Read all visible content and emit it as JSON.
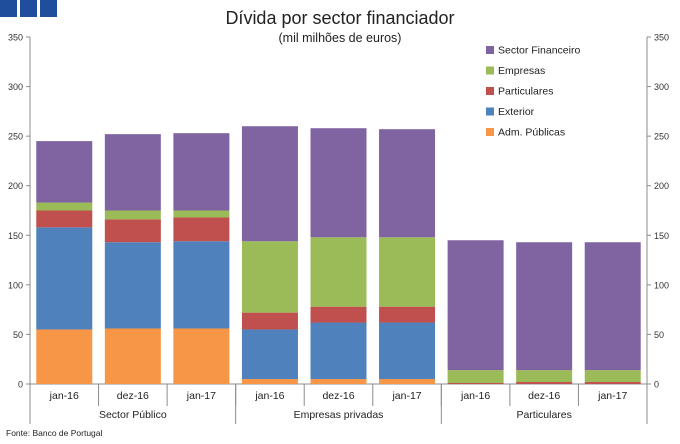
{
  "logo": {
    "icon": "brand-squares-icon",
    "color": "#1f4e9c"
  },
  "source": "Fonte: Banco de Portugal",
  "chart_data": {
    "type": "bar",
    "stacked": true,
    "title": "Dívida por sector financiador",
    "subtitle": "(mil milhões de euros)",
    "ylim": [
      0,
      350
    ],
    "yticks": [
      0,
      50,
      100,
      150,
      200,
      250,
      300,
      350
    ],
    "ytick_labels": [
      "0",
      "50",
      "100",
      "150",
      "200",
      "250",
      "300",
      "350"
    ],
    "secondary_axis": true,
    "grid": false,
    "legend_position": "top-right",
    "categories": [
      "jan-16",
      "dez-16",
      "jan-17",
      "jan-16",
      "dez-16",
      "jan-17",
      "jan-16",
      "dez-16",
      "jan-17"
    ],
    "groups": [
      {
        "label": "Sector Público",
        "span": 3
      },
      {
        "label": "Empresas privadas",
        "span": 3
      },
      {
        "label": "Particulares",
        "span": 3
      }
    ],
    "legend_order": [
      "Sector Financeiro",
      "Empresas",
      "Particulares",
      "Exterior",
      "Adm. Públicas"
    ],
    "series": [
      {
        "name": "Adm. Públicas",
        "color": "#f79646",
        "values": [
          55,
          56,
          56,
          5,
          5,
          5,
          0,
          0,
          0
        ]
      },
      {
        "name": "Exterior",
        "color": "#4f81bd",
        "values": [
          103,
          87,
          88,
          50,
          57,
          57,
          0,
          0,
          0
        ]
      },
      {
        "name": "Particulares",
        "color": "#c0504d",
        "values": [
          17,
          23,
          24,
          17,
          16,
          16,
          1,
          2,
          2
        ]
      },
      {
        "name": "Empresas",
        "color": "#9bbb59",
        "values": [
          8,
          9,
          7,
          72,
          70,
          70,
          13,
          12,
          12
        ]
      },
      {
        "name": "Sector Financeiro",
        "color": "#8064a2",
        "values": [
          62,
          77,
          78,
          116,
          110,
          109,
          131,
          129,
          129
        ]
      }
    ]
  }
}
